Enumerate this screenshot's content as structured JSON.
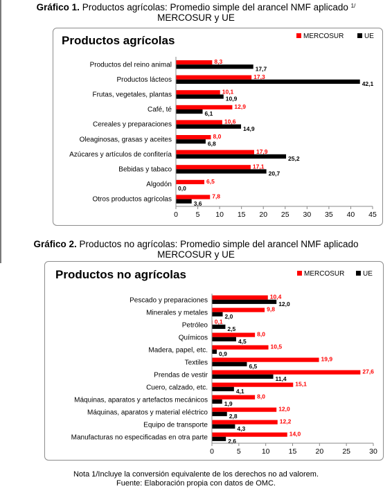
{
  "captions": {
    "chart1": {
      "num": "Gráfico 1.",
      "text": "Productos agrícolas: Promedio simple del arancel NMF aplicado",
      "sup": "1/",
      "line2": "MERCOSUR y UE"
    },
    "chart2": {
      "num": "Gráfico 2.",
      "text": "Productos no agrícolas: Promedio simple del arancel NMF aplicado",
      "line2": "MERCOSUR y UE"
    }
  },
  "footer": {
    "note": "Nota 1/Incluye la conversión equivalente de los derechos no ad valorem.",
    "source": "Fuente: Elaboración propia con datos de OMC."
  },
  "colors": {
    "mercosur": "#ff0000",
    "ue": "#000000"
  },
  "chart_data": [
    {
      "type": "bar",
      "orientation": "horizontal",
      "title": "Productos agrícolas",
      "categories": [
        "Productos del reino animal",
        "Productos lácteos",
        "Frutas, vegetales, plantas",
        "Café, té",
        "Cereales y preparaciones",
        "Oleaginosas, grasas y aceites",
        "Azúcares y artículos de confitería",
        "Bebidas y tabaco",
        "Algodón",
        "Otros productos agrícolas"
      ],
      "series": [
        {
          "name": "MERCOSUR",
          "color": "#ff0000",
          "values": [
            8.3,
            17.3,
            10.1,
            12.9,
            10.6,
            8.0,
            17.9,
            17.1,
            6.5,
            7.8
          ],
          "labels": [
            "8,3",
            "17,3",
            "10,1",
            "12,9",
            "10,6",
            "8,0",
            "17,9",
            "17,1",
            "6,5",
            "7,8"
          ]
        },
        {
          "name": "UE",
          "color": "#000000",
          "values": [
            17.7,
            42.1,
            10.9,
            6.1,
            14.9,
            6.8,
            25.2,
            20.7,
            0.0,
            3.6
          ],
          "labels": [
            "17,7",
            "42,1",
            "10,9",
            "6,1",
            "14,9",
            "6,8",
            "25,2",
            "20,7",
            "0,0",
            "3,6"
          ]
        }
      ],
      "xlim": [
        0,
        45
      ],
      "ticks": [
        0,
        5,
        10,
        15,
        20,
        25,
        30,
        35,
        40,
        45
      ],
      "tick_labels": [
        "0",
        "5",
        "10",
        "15",
        "20",
        "25",
        "30",
        "35",
        "40",
        "45"
      ],
      "grid": false,
      "legend": "top-right"
    },
    {
      "type": "bar",
      "orientation": "horizontal",
      "title": "Productos no agrícolas",
      "categories": [
        "Pescado y preparaciones",
        "Minerales y metales",
        "Petróleo",
        "Químicos",
        "Madera, papel, etc.",
        "Textiles",
        "Prendas de vestir",
        "Cuero, calzado, etc.",
        "Máquinas, aparatos y artefactos mecánicos",
        "Máquinas, aparatos y material eléctrico",
        "Equipo de transporte",
        "Manufacturas no especificadas en otra parte"
      ],
      "series": [
        {
          "name": "MERCOSUR",
          "color": "#ff0000",
          "values": [
            10.4,
            9.8,
            0.1,
            8.0,
            10.5,
            19.9,
            27.6,
            15.1,
            8.0,
            12.0,
            12.2,
            14.0
          ],
          "labels": [
            "10,4",
            "9,8",
            "0,1",
            "8,0",
            "10,5",
            "19,9",
            "27,6",
            "15,1",
            "8,0",
            "12,0",
            "12,2",
            "14,0"
          ]
        },
        {
          "name": "UE",
          "color": "#000000",
          "values": [
            12.0,
            2.0,
            2.5,
            4.5,
            0.9,
            6.5,
            11.4,
            4.1,
            1.9,
            2.8,
            4.3,
            2.6
          ],
          "labels": [
            "12,0",
            "2,0",
            "2,5",
            "4,5",
            "0,9",
            "6,5",
            "11,4",
            "4,1",
            "1,9",
            "2,8",
            "4,3",
            "2,6"
          ]
        }
      ],
      "xlim": [
        0,
        30
      ],
      "ticks": [
        0,
        5,
        10,
        15,
        20,
        25,
        30
      ],
      "tick_labels": [
        "0",
        "5",
        "10",
        "15",
        "20",
        "25",
        "30"
      ],
      "grid": false,
      "legend": "top-right"
    }
  ]
}
